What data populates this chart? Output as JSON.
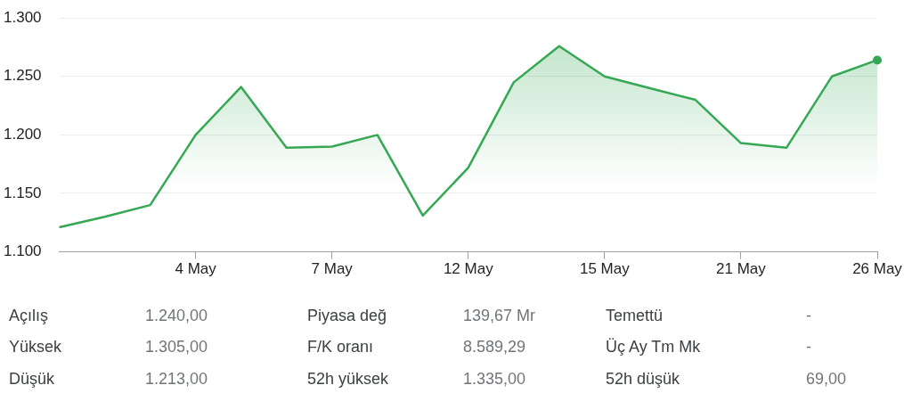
{
  "chart_data": [
    {
      "type": "area",
      "categories": [
        null,
        null,
        null,
        "4 May",
        null,
        null,
        "7 May",
        null,
        null,
        "12 May",
        null,
        null,
        "15 May",
        null,
        null,
        "21 May",
        null,
        null,
        "26 May"
      ],
      "series": [
        {
          "color": "#34a853",
          "marker": "none",
          "values": [
            1121,
            1130,
            1140,
            1200,
            1241,
            1189,
            1190,
            1200,
            1131,
            1172,
            1245,
            1276,
            1250,
            1240,
            1230,
            1193,
            1189,
            1250,
            1264
          ]
        },
        {
          "type": "scatter",
          "color": "#34a853",
          "marker": "circle",
          "values": [
            null,
            null,
            null,
            null,
            null,
            null,
            null,
            null,
            null,
            null,
            null,
            null,
            null,
            null,
            null,
            null,
            null,
            null,
            1264
          ]
        }
      ],
      "ylim": [
        1100,
        1300
      ],
      "yticks": [
        {
          "value": 1100,
          "label": "1.100"
        },
        {
          "value": 1150,
          "label": "1.150"
        },
        {
          "value": 1200,
          "label": "1.200"
        },
        {
          "value": 1250,
          "label": "1.250"
        },
        {
          "value": 1300,
          "label": "1.300"
        }
      ],
      "grid": "y",
      "legend": false
    },
    {
      "type": "other",
      "annotations": [
        "Açılış",
        "1.240,00",
        "Piyasa değ",
        "139,67 Mr",
        "Temettü",
        "-",
        "Yüksek",
        "1.305,00",
        "F/K oranı",
        "8.589,29",
        "Üç Ay Tm Mk",
        "-",
        "Düşük",
        "1.213,00",
        "52h yüksek",
        "1.335,00",
        "52h düşük",
        "69,00"
      ]
    }
  ]
}
